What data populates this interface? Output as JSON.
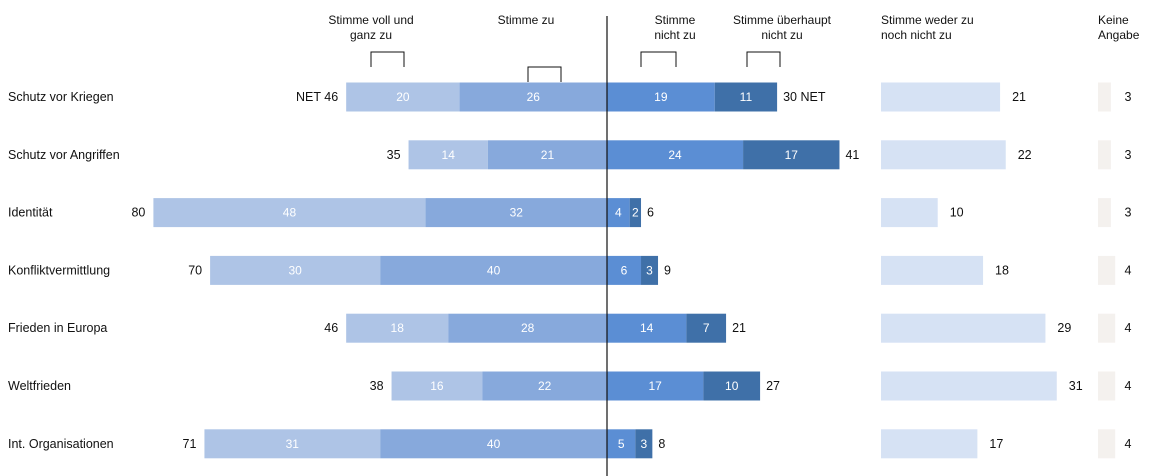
{
  "chart_data": {
    "type": "bar",
    "categories": [
      "Schutz vor Kriegen",
      "Schutz vor Angriffen",
      "Identität",
      "Konfliktvermittlung",
      "Frieden in Europa",
      "Weltfrieden",
      "Int. Organisationen"
    ],
    "series": [
      {
        "name": "Stimme voll und ganz zu",
        "values": [
          20,
          14,
          48,
          30,
          18,
          16,
          31
        ]
      },
      {
        "name": "Stimme zu",
        "values": [
          26,
          21,
          32,
          40,
          28,
          22,
          40
        ]
      },
      {
        "name": "Stimme nicht zu",
        "values": [
          19,
          24,
          4,
          6,
          14,
          17,
          5
        ]
      },
      {
        "name": "Stimme überhaupt nicht zu",
        "values": [
          11,
          17,
          2,
          3,
          7,
          10,
          3
        ]
      },
      {
        "name": "Stimme weder zu noch nicht zu",
        "values": [
          21,
          22,
          10,
          18,
          29,
          31,
          17
        ]
      },
      {
        "name": "Keine Angabe",
        "values": [
          3,
          3,
          3,
          4,
          4,
          4,
          4
        ]
      }
    ],
    "net_agree": [
      46,
      35,
      80,
      70,
      46,
      38,
      71
    ],
    "net_disagree": [
      30,
      41,
      6,
      9,
      21,
      27,
      8
    ],
    "net_marker": "NET",
    "headers": {
      "voll_zu": [
        "Stimme voll und",
        "ganz zu"
      ],
      "zu": [
        "Stimme zu"
      ],
      "nicht_zu": [
        "Stimme",
        "nicht zu"
      ],
      "ueberhaupt_nicht": [
        "Stimme überhaupt",
        "nicht zu"
      ],
      "weder": [
        "Stimme weder zu",
        "noch nicht zu"
      ],
      "keine": [
        "Keine",
        "Angabe"
      ]
    },
    "colors": {
      "voll_zu": "#aec4e6",
      "zu": "#87a9dc",
      "nicht_zu": "#5b8ed4",
      "ueberhaupt_nicht": "#3f70a8",
      "weder": "#d6e2f4",
      "keine": "#f4f1ee"
    }
  }
}
